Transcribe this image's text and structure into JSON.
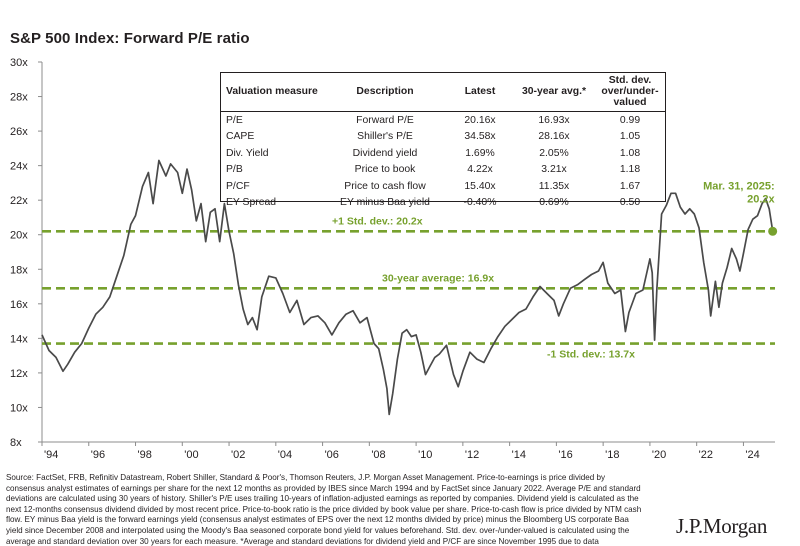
{
  "title": "S&P 500 Index: Forward P/E ratio",
  "chart_data": {
    "type": "line",
    "title": "S&P 500 Index: Forward P/E ratio",
    "xlabel": "",
    "ylabel": "",
    "x_range": [
      1994,
      2025.25
    ],
    "ylim": [
      8,
      30
    ],
    "y_ticks": [
      "30x",
      "28x",
      "26x",
      "24x",
      "22x",
      "20x",
      "18x",
      "16x",
      "14x",
      "12x",
      "10x",
      "8x"
    ],
    "y_tick_values": [
      30,
      28,
      26,
      24,
      22,
      20,
      18,
      16,
      14,
      12,
      10,
      8
    ],
    "x_ticks": [
      "'94",
      "'96",
      "'98",
      "'00",
      "'02",
      "'04",
      "'06",
      "'08",
      "'10",
      "'12",
      "'14",
      "'16",
      "'18",
      "'20",
      "'22",
      "'24"
    ],
    "x_tick_values": [
      1994,
      1996,
      1998,
      2000,
      2002,
      2004,
      2006,
      2008,
      2010,
      2012,
      2014,
      2016,
      2018,
      2020,
      2022,
      2024
    ],
    "grid": false,
    "line_color": "#4a4a4a",
    "reference_color": "#77a12e",
    "series": [
      {
        "x": [
          1994.0,
          1994.3,
          1994.6,
          1994.9,
          1995.1,
          1995.4,
          1995.7,
          1996.0,
          1996.3,
          1996.6,
          1996.9,
          1997.2,
          1997.5,
          1997.8,
          1998.0,
          1998.3,
          1998.55,
          1998.75,
          1999.0,
          1999.3,
          1999.5,
          1999.8,
          2000.0,
          2000.2,
          2000.4,
          2000.6,
          2000.8,
          2001.0,
          2001.2,
          2001.4,
          2001.6,
          2001.8,
          2002.0,
          2002.2,
          2002.4,
          2002.6,
          2002.8,
          2003.0,
          2003.2,
          2003.4,
          2003.7,
          2004.0,
          2004.3,
          2004.6,
          2004.9,
          2005.2,
          2005.5,
          2005.8,
          2006.1,
          2006.4,
          2006.7,
          2007.0,
          2007.3,
          2007.6,
          2007.9,
          2008.2,
          2008.4,
          2008.6,
          2008.75,
          2008.85,
          2009.0,
          2009.2,
          2009.4,
          2009.6,
          2009.8,
          2010.0,
          2010.2,
          2010.4,
          2010.6,
          2010.8,
          2011.0,
          2011.3,
          2011.6,
          2011.8,
          2012.0,
          2012.3,
          2012.6,
          2012.9,
          2013.2,
          2013.5,
          2013.8,
          2014.1,
          2014.4,
          2014.7,
          2015.0,
          2015.3,
          2015.6,
          2015.9,
          2016.1,
          2016.3,
          2016.6,
          2016.9,
          2017.2,
          2017.5,
          2017.8,
          2018.0,
          2018.2,
          2018.5,
          2018.75,
          2018.95,
          2019.1,
          2019.4,
          2019.7,
          2020.0,
          2020.1,
          2020.2,
          2020.3,
          2020.5,
          2020.7,
          2020.9,
          2021.1,
          2021.3,
          2021.5,
          2021.7,
          2021.9,
          2022.1,
          2022.3,
          2022.5,
          2022.6,
          2022.8,
          2022.95,
          2023.1,
          2023.3,
          2023.5,
          2023.7,
          2023.85,
          2024.0,
          2024.2,
          2024.4,
          2024.6,
          2024.8,
          2024.95,
          2025.1,
          2025.25
        ],
        "values": [
          14.2,
          13.3,
          12.9,
          12.1,
          12.5,
          13.2,
          13.7,
          14.6,
          15.4,
          15.8,
          16.4,
          17.6,
          18.8,
          20.6,
          21.1,
          22.8,
          23.6,
          21.8,
          24.3,
          23.4,
          24.1,
          23.6,
          22.4,
          23.8,
          22.6,
          20.8,
          21.8,
          19.6,
          21.3,
          21.5,
          19.6,
          21.8,
          20.2,
          18.9,
          17.1,
          15.7,
          14.8,
          15.2,
          14.5,
          16.4,
          17.6,
          17.5,
          16.6,
          15.5,
          16.2,
          14.8,
          15.2,
          15.3,
          14.9,
          14.2,
          14.9,
          15.4,
          15.6,
          14.9,
          15.2,
          13.7,
          13.4,
          12.2,
          11.1,
          9.6,
          10.8,
          12.8,
          14.3,
          14.5,
          14.1,
          14.2,
          13.2,
          11.9,
          12.4,
          12.9,
          13.1,
          13.6,
          11.9,
          11.2,
          12.1,
          13.2,
          12.8,
          12.6,
          13.4,
          14.1,
          14.7,
          15.1,
          15.5,
          15.7,
          16.4,
          17.0,
          16.6,
          16.2,
          15.3,
          16.0,
          16.9,
          17.1,
          17.4,
          17.7,
          17.9,
          18.4,
          17.2,
          16.6,
          16.8,
          14.4,
          15.5,
          16.6,
          16.8,
          18.6,
          17.8,
          13.9,
          16.9,
          21.2,
          21.7,
          22.4,
          22.4,
          21.6,
          21.2,
          21.5,
          21.2,
          20.4,
          18.4,
          16.8,
          15.3,
          17.3,
          15.8,
          17.2,
          18.1,
          19.2,
          18.6,
          17.9,
          18.9,
          20.3,
          20.9,
          21.1,
          21.8,
          22.1,
          21.5,
          20.2
        ],
        "color": "#4a4a4a"
      }
    ],
    "reference_lines": [
      {
        "value": 20.2,
        "label": "+1 Std. dev.: 20.2x"
      },
      {
        "value": 16.9,
        "label": "30-year average: 16.9x"
      },
      {
        "value": 13.7,
        "label": "-1 Std. dev.: 13.7x"
      }
    ],
    "end_point": {
      "x": 2025.25,
      "value": 20.2,
      "label_date": "Mar. 31, 2025:",
      "label_value": "20.2x"
    }
  },
  "table": {
    "headers": [
      "Valuation measure",
      "Description",
      "Latest",
      "30-year avg.*",
      "Std. dev. over/under-valued"
    ],
    "rows": [
      [
        "P/E",
        "Forward P/E",
        "20.16x",
        "16.93x",
        "0.99"
      ],
      [
        "CAPE",
        "Shiller's P/E",
        "34.58x",
        "28.16x",
        "1.05"
      ],
      [
        "Div. Yield",
        "Dividend yield",
        "1.69%",
        "2.05%",
        "1.08"
      ],
      [
        "P/B",
        "Price to book",
        "4.22x",
        "3.21x",
        "1.18"
      ],
      [
        "P/CF",
        "Price to cash flow",
        "15.40x",
        "11.35x",
        "1.67"
      ],
      [
        "EY Spread",
        "EY minus Baa yield",
        "-0.40%",
        "0.69%",
        "0.50"
      ]
    ]
  },
  "source_text": "Source: FactSet, FRB, Refinitiv Datastream, Robert Shiller, Standard & Poor's, Thomson Reuters, J.P. Morgan Asset Management. Price-to-earnings is price divided by consensus analyst estimates of earnings per share for the next 12 months as provided by IBES since March 1994 and by FactSet since January 2022. Average P/E and standard deviations are calculated using 30 years of history. Shiller's P/E uses trailing 10-years of inflation-adjusted earnings as reported by companies. Dividend yield is calculated as the next 12-months consensus dividend divided by most recent price. Price-to-book ratio is the price divided by book value per share. Price-to-cash flow is price divided by NTM cash flow. EY minus Baa yield is the forward earnings yield (consensus analyst estimates of EPS over the next 12 months divided by price) minus the Bloomberg US corporate Baa yield since December 2008 and interpolated using the Moody's Baa seasoned corporate bond yield for values beforehand. Std. dev. over-/under-valued is calculated using the average and standard deviation over 30 years for each measure. *Average and standard deviations for dividend yield and P/CF are since November 1995 due to data",
  "logo": "J.P.Morgan"
}
